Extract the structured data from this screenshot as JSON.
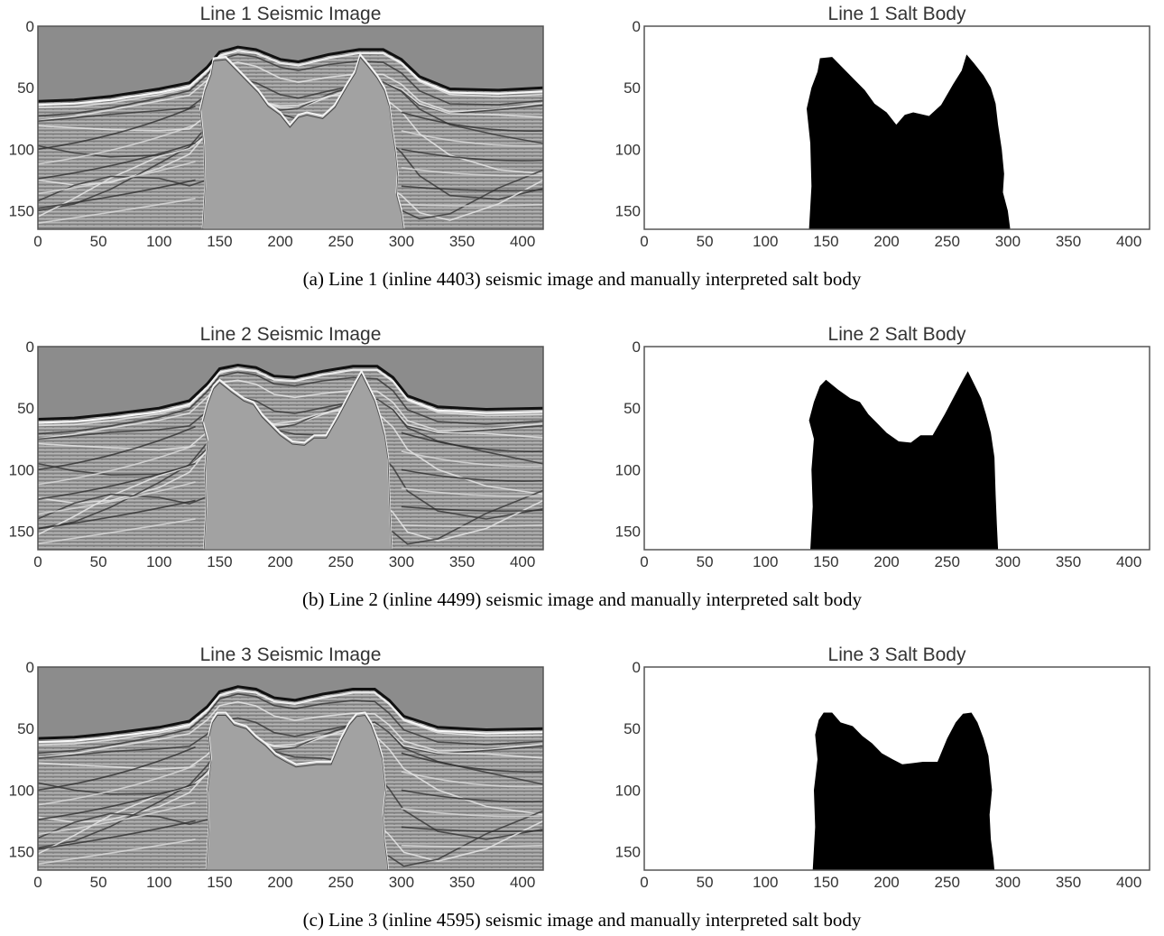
{
  "figure": {
    "rows": [
      {
        "caption": "(a) Line 1 (inline 4403) seismic image and manually interpreted salt body",
        "seismic_title": "Line 1 Seismic Image",
        "salt_title": "Line 1 Salt Body"
      },
      {
        "caption": "(b) Line 2 (inline 4499) seismic image and manually interpreted salt body",
        "seismic_title": "Line 2 Seismic Image",
        "salt_title": "Line 2 Salt Body"
      },
      {
        "caption": "(c) Line 3 (inline 4595) seismic image and manually interpreted salt body",
        "seismic_title": "Line 3 Seismic Image",
        "salt_title": "Line 3 Salt Body"
      }
    ]
  },
  "chart_data": [
    {
      "type": "heatmap",
      "title": "Line 1 Seismic Image",
      "colormap": "grayscale seismic amplitude",
      "xlim": [
        0,
        417
      ],
      "ylim": [
        165,
        0
      ],
      "xticks": [
        0,
        50,
        100,
        150,
        200,
        250,
        300,
        350,
        400
      ],
      "yticks": [
        0,
        50,
        100,
        150
      ],
      "grid": false,
      "top_horizon": [
        [
          0,
          61
        ],
        [
          30,
          60
        ],
        [
          60,
          57
        ],
        [
          100,
          51
        ],
        [
          125,
          46
        ],
        [
          140,
          33
        ],
        [
          150,
          21
        ],
        [
          165,
          17
        ],
        [
          180,
          19
        ],
        [
          200,
          27
        ],
        [
          215,
          29
        ],
        [
          240,
          23
        ],
        [
          265,
          19
        ],
        [
          285,
          19
        ],
        [
          300,
          27
        ],
        [
          315,
          41
        ],
        [
          340,
          51
        ],
        [
          380,
          52
        ],
        [
          417,
          50
        ]
      ]
    },
    {
      "type": "heatmap",
      "title": "Line 1 Salt Body",
      "colormap": "binary mask (black = salt)",
      "xlim": [
        0,
        417
      ],
      "ylim": [
        165,
        0
      ],
      "xticks": [
        0,
        50,
        100,
        150,
        200,
        250,
        300,
        350,
        400
      ],
      "yticks": [
        0,
        50,
        100,
        150
      ],
      "grid": false,
      "salt_outline": [
        [
          136,
          165
        ],
        [
          138,
          130
        ],
        [
          137,
          95
        ],
        [
          134,
          67
        ],
        [
          138,
          50
        ],
        [
          143,
          37
        ],
        [
          145,
          26
        ],
        [
          155,
          25
        ],
        [
          165,
          35
        ],
        [
          175,
          45
        ],
        [
          182,
          52
        ],
        [
          190,
          63
        ],
        [
          200,
          70
        ],
        [
          208,
          80
        ],
        [
          215,
          72
        ],
        [
          222,
          70
        ],
        [
          235,
          73
        ],
        [
          245,
          64
        ],
        [
          255,
          47
        ],
        [
          262,
          36
        ],
        [
          266,
          23
        ],
        [
          272,
          30
        ],
        [
          280,
          40
        ],
        [
          286,
          50
        ],
        [
          290,
          63
        ],
        [
          292,
          80
        ],
        [
          295,
          100
        ],
        [
          297,
          120
        ],
        [
          296,
          135
        ],
        [
          300,
          150
        ],
        [
          302,
          165
        ]
      ]
    },
    {
      "type": "heatmap",
      "title": "Line 2 Seismic Image",
      "colormap": "grayscale seismic amplitude",
      "xlim": [
        0,
        417
      ],
      "ylim": [
        165,
        0
      ],
      "xticks": [
        0,
        50,
        100,
        150,
        200,
        250,
        300,
        350,
        400
      ],
      "yticks": [
        0,
        50,
        100,
        150
      ],
      "grid": false,
      "top_horizon": [
        [
          0,
          59
        ],
        [
          30,
          58
        ],
        [
          60,
          55
        ],
        [
          100,
          50
        ],
        [
          125,
          44
        ],
        [
          140,
          30
        ],
        [
          150,
          18
        ],
        [
          165,
          15
        ],
        [
          180,
          17
        ],
        [
          195,
          24
        ],
        [
          212,
          25
        ],
        [
          235,
          20
        ],
        [
          260,
          16
        ],
        [
          280,
          16
        ],
        [
          293,
          25
        ],
        [
          305,
          40
        ],
        [
          330,
          49
        ],
        [
          370,
          51
        ],
        [
          417,
          50
        ]
      ]
    },
    {
      "type": "heatmap",
      "title": "Line 2 Salt Body",
      "colormap": "binary mask (black = salt)",
      "xlim": [
        0,
        417
      ],
      "ylim": [
        165,
        0
      ],
      "xticks": [
        0,
        50,
        100,
        150,
        200,
        250,
        300,
        350,
        400
      ],
      "yticks": [
        0,
        50,
        100,
        150
      ],
      "grid": false,
      "salt_outline": [
        [
          137,
          165
        ],
        [
          139,
          130
        ],
        [
          138,
          100
        ],
        [
          140,
          75
        ],
        [
          136,
          60
        ],
        [
          140,
          45
        ],
        [
          145,
          32
        ],
        [
          150,
          27
        ],
        [
          160,
          35
        ],
        [
          170,
          42
        ],
        [
          178,
          45
        ],
        [
          185,
          55
        ],
        [
          192,
          62
        ],
        [
          200,
          70
        ],
        [
          210,
          77
        ],
        [
          220,
          78
        ],
        [
          228,
          72
        ],
        [
          238,
          72
        ],
        [
          248,
          55
        ],
        [
          256,
          40
        ],
        [
          263,
          27
        ],
        [
          267,
          20
        ],
        [
          272,
          30
        ],
        [
          278,
          42
        ],
        [
          282,
          55
        ],
        [
          286,
          70
        ],
        [
          289,
          90
        ],
        [
          290,
          120
        ],
        [
          291,
          145
        ],
        [
          292,
          165
        ]
      ]
    },
    {
      "type": "heatmap",
      "title": "Line 3 Seismic Image",
      "colormap": "grayscale seismic amplitude",
      "xlim": [
        0,
        417
      ],
      "ylim": [
        165,
        0
      ],
      "xticks": [
        0,
        50,
        100,
        150,
        200,
        250,
        300,
        350,
        400
      ],
      "yticks": [
        0,
        50,
        100,
        150
      ],
      "grid": false,
      "top_horizon": [
        [
          0,
          58
        ],
        [
          30,
          57
        ],
        [
          60,
          54
        ],
        [
          100,
          49
        ],
        [
          125,
          44
        ],
        [
          140,
          32
        ],
        [
          150,
          20
        ],
        [
          165,
          16
        ],
        [
          180,
          18
        ],
        [
          195,
          25
        ],
        [
          212,
          27
        ],
        [
          235,
          22
        ],
        [
          260,
          18
        ],
        [
          278,
          18
        ],
        [
          290,
          27
        ],
        [
          302,
          40
        ],
        [
          330,
          49
        ],
        [
          370,
          51
        ],
        [
          417,
          50
        ]
      ]
    },
    {
      "type": "heatmap",
      "title": "Line 3 Salt Body",
      "colormap": "binary mask (black = salt)",
      "xlim": [
        0,
        417
      ],
      "ylim": [
        165,
        0
      ],
      "xticks": [
        0,
        50,
        100,
        150,
        200,
        250,
        300,
        350,
        400
      ],
      "yticks": [
        0,
        50,
        100,
        150
      ],
      "grid": false,
      "salt_outline": [
        [
          139,
          165
        ],
        [
          141,
          130
        ],
        [
          140,
          100
        ],
        [
          143,
          75
        ],
        [
          141,
          55
        ],
        [
          144,
          43
        ],
        [
          148,
          37
        ],
        [
          155,
          37
        ],
        [
          162,
          45
        ],
        [
          172,
          48
        ],
        [
          180,
          56
        ],
        [
          188,
          62
        ],
        [
          196,
          70
        ],
        [
          205,
          75
        ],
        [
          213,
          79
        ],
        [
          222,
          78
        ],
        [
          230,
          77
        ],
        [
          242,
          77
        ],
        [
          250,
          58
        ],
        [
          257,
          45
        ],
        [
          263,
          38
        ],
        [
          270,
          37
        ],
        [
          275,
          45
        ],
        [
          280,
          58
        ],
        [
          284,
          72
        ],
        [
          287,
          100
        ],
        [
          285,
          120
        ],
        [
          286,
          140
        ],
        [
          288,
          155
        ],
        [
          289,
          165
        ]
      ]
    }
  ]
}
